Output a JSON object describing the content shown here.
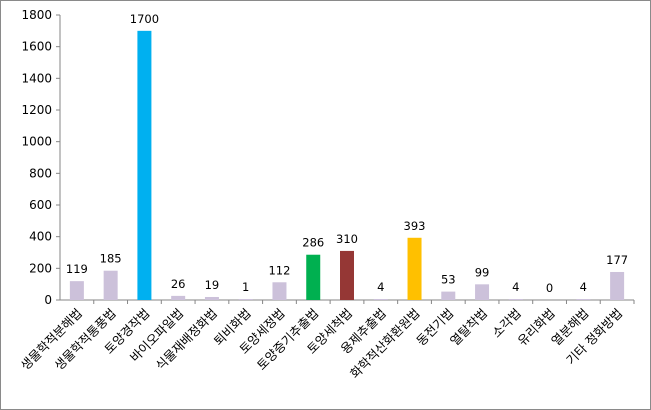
{
  "chart_data": {
    "type": "bar",
    "categories": [
      "생물학적분해법",
      "생물학적통풍법",
      "토양경작법",
      "바이오파일법",
      "식물재배정화법",
      "퇴비화법",
      "토양세정법",
      "토양증기추출법",
      "토양세척법",
      "용제추출법",
      "화학적산화환원법",
      "동전기법",
      "열탈착법",
      "소각법",
      "유리화법",
      "열분해법",
      "기타 정화방법"
    ],
    "values": [
      119,
      185,
      1700,
      26,
      19,
      1,
      112,
      286,
      310,
      4,
      393,
      53,
      99,
      4,
      0,
      4,
      177
    ],
    "colors": [
      "#ccc1da",
      "#ccc1da",
      "#00b0f0",
      "#ccc1da",
      "#ccc1da",
      "#ccc1da",
      "#ccc1da",
      "#00b050",
      "#953735",
      "#ccc1da",
      "#ffc000",
      "#ccc1da",
      "#ccc1da",
      "#ccc1da",
      "#ccc1da",
      "#ccc1da",
      "#ccc1da"
    ],
    "ylim": [
      0,
      1800
    ],
    "yticks": [
      0,
      200,
      400,
      600,
      800,
      1000,
      1200,
      1400,
      1600,
      1800
    ],
    "grid": false,
    "legend": "none"
  }
}
